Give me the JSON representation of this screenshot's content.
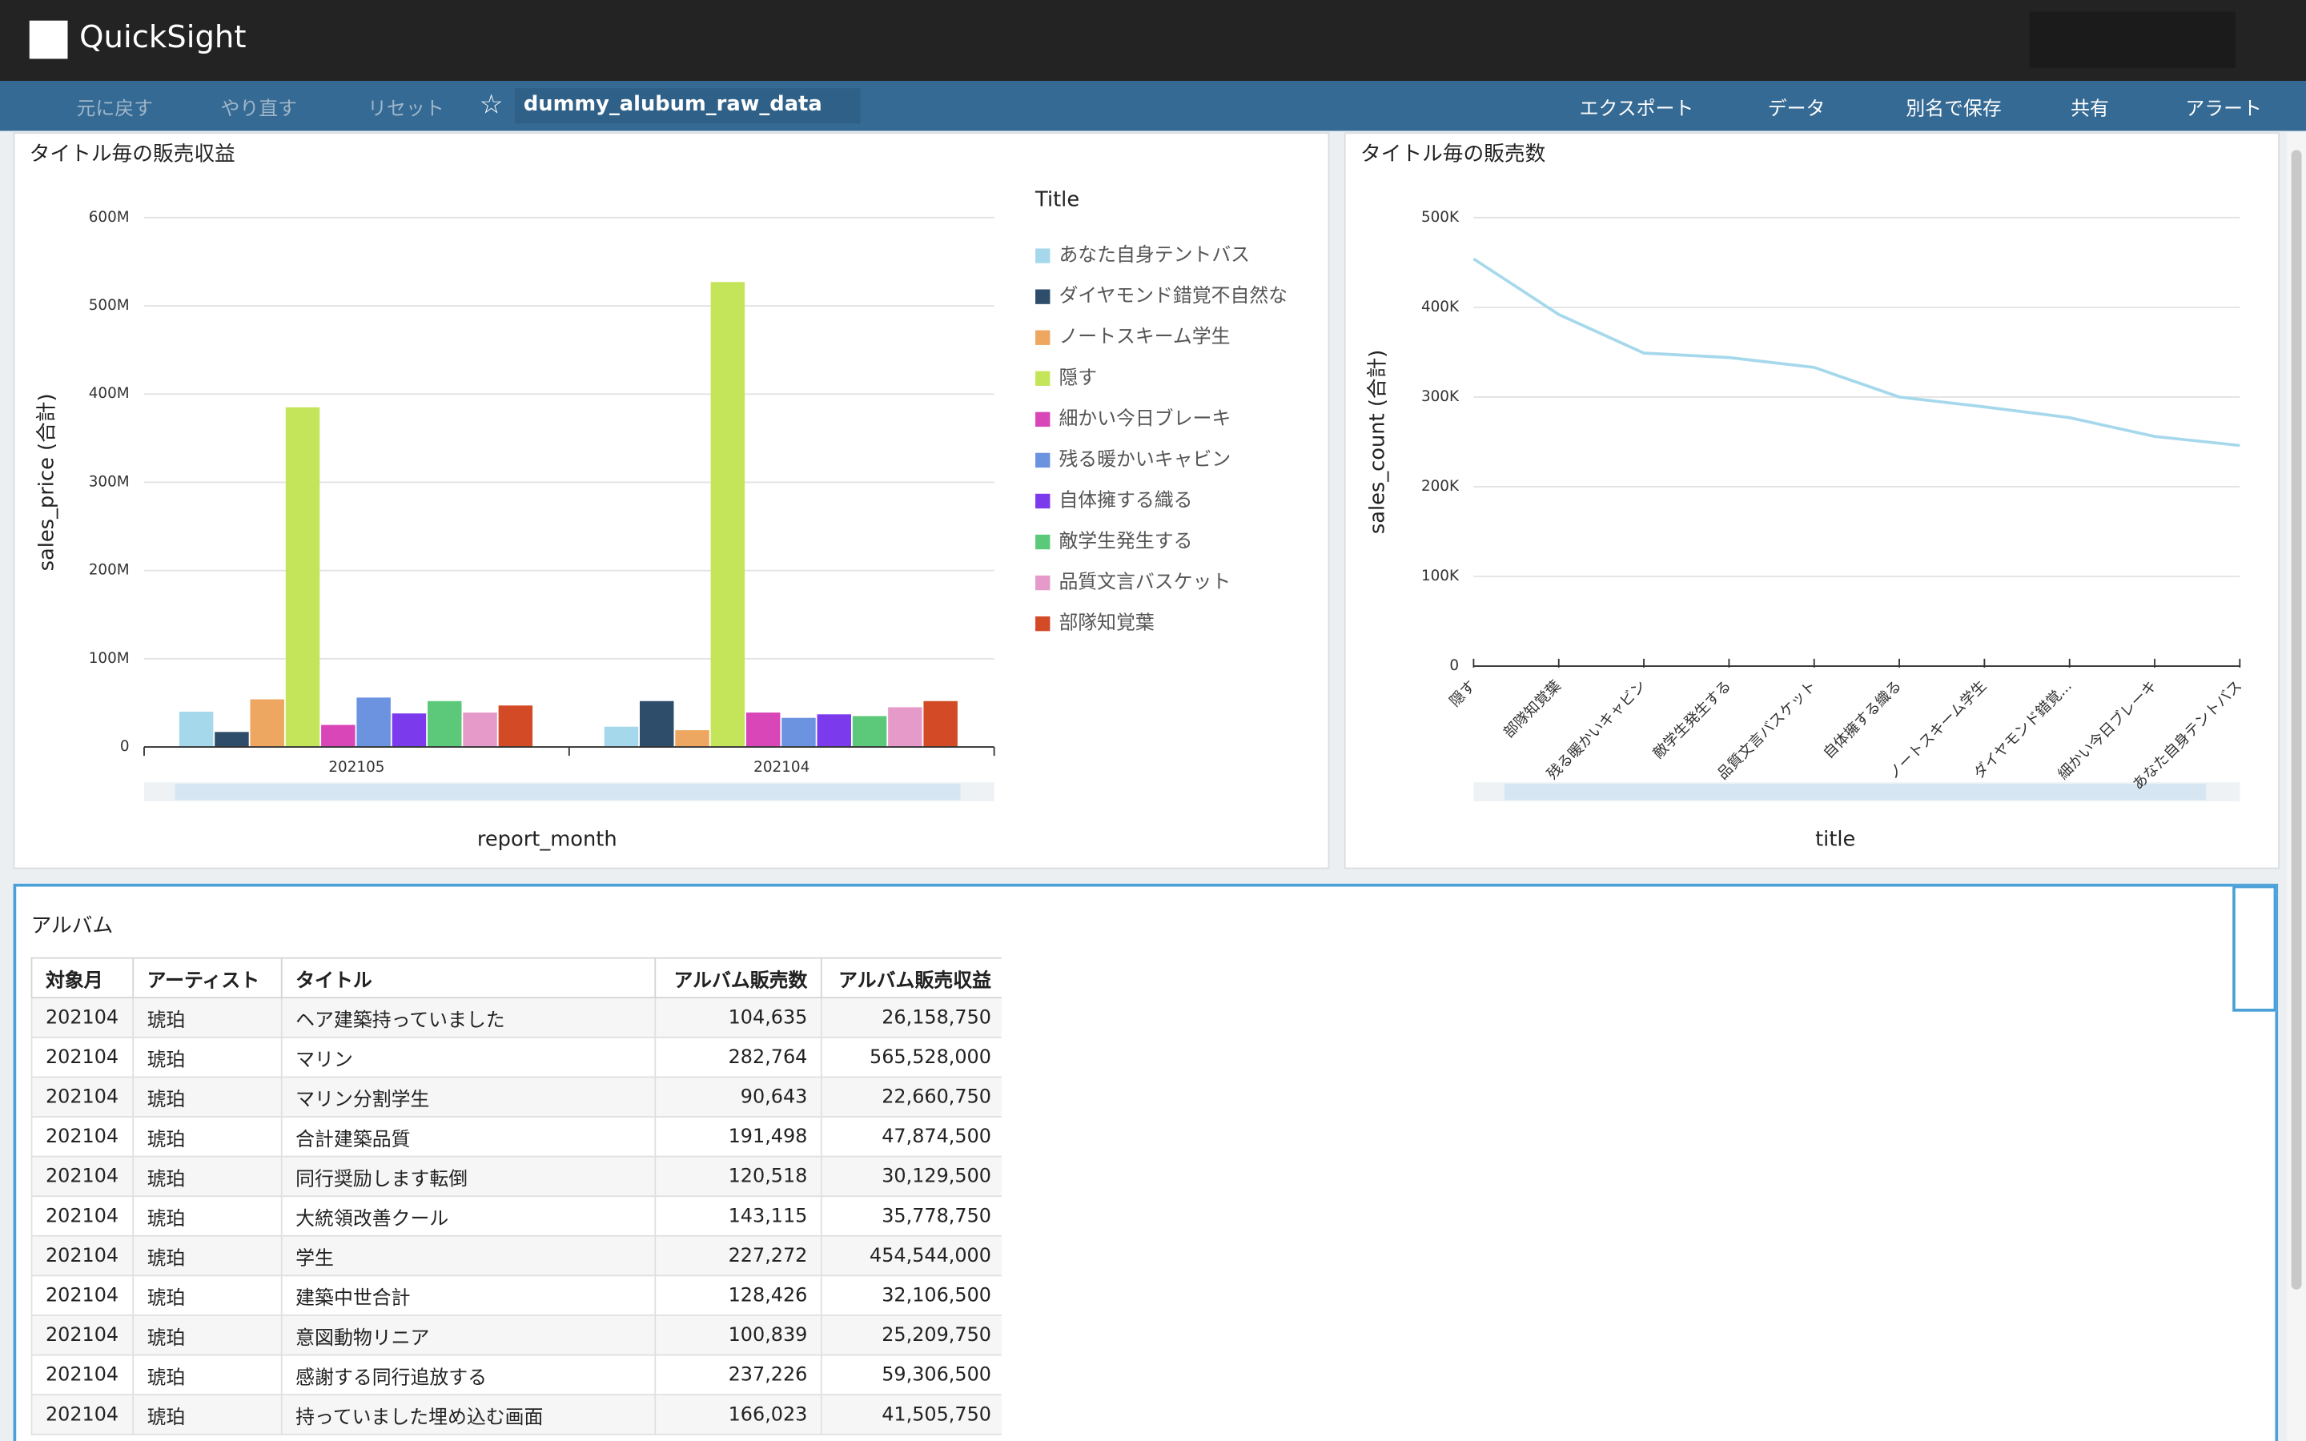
{
  "header": {
    "product": "QuickSight"
  },
  "toolbar": {
    "undo": "元に戻す",
    "redo": "やり直す",
    "reset": "リセット",
    "analysis_name": "dummy_alubum_raw_data",
    "actions": [
      "エクスポート",
      "データ",
      "別名で保存",
      "共有",
      "アラート"
    ]
  },
  "chart_data": [
    {
      "type": "bar",
      "title": "タイトル毎の販売収益",
      "x_label": "report_month",
      "y_label": "sales_price (合計)",
      "legend_title": "Title",
      "legend": "right",
      "grid": true,
      "categories": [
        "202105",
        "202104"
      ],
      "series": [
        {
          "name": "あなた自身テントバス",
          "color": "#a6d8ec",
          "values": [
            40000000,
            23000000
          ]
        },
        {
          "name": "ダイヤモンド錯覚不自然な",
          "color": "#2e4d6b",
          "values": [
            17000000,
            52000000
          ]
        },
        {
          "name": "ノートスキーム学生",
          "color": "#eea760",
          "values": [
            54000000,
            19000000
          ]
        },
        {
          "name": "隠す",
          "color": "#c4e45a",
          "values": [
            385000000,
            527000000
          ]
        },
        {
          "name": "細かい今日ブレーキ",
          "color": "#d946b8",
          "values": [
            25000000,
            39000000
          ]
        },
        {
          "name": "残る暖かいキャビン",
          "color": "#6b93e0",
          "values": [
            56000000,
            33000000
          ]
        },
        {
          "name": "自体擁する織る",
          "color": "#7c3aed",
          "values": [
            38000000,
            37000000
          ]
        },
        {
          "name": "敵学生発生する",
          "color": "#5cc97a",
          "values": [
            52000000,
            35000000
          ]
        },
        {
          "name": "品質文言バスケット",
          "color": "#e59ac9",
          "values": [
            39000000,
            45000000
          ]
        },
        {
          "name": "部隊知覚葉",
          "color": "#d24a26",
          "values": [
            47000000,
            52000000
          ]
        }
      ],
      "ylim": [
        0,
        600000000
      ],
      "yticks": [
        0,
        {
          "value": 100000000,
          "label": "100M"
        },
        {
          "value": 200000000,
          "label": "200M"
        },
        {
          "value": 300000000,
          "label": "300M"
        },
        {
          "value": 400000000,
          "label": "400M"
        },
        {
          "value": 500000000,
          "label": "500M"
        },
        {
          "value": 600000000,
          "label": "600M"
        }
      ]
    },
    {
      "type": "line",
      "title": "タイトル毎の販売数",
      "x_label": "title",
      "y_label": "sales_count (合計)",
      "grid": true,
      "color": "#a6d8ec",
      "categories": [
        "隠す",
        "部隊知覚葉",
        "残る暖かいキャビン",
        "敵学生発生する",
        "品質文言バスケット",
        "自体擁する織る",
        "ノートスキーム学生",
        "ダイヤモンド錯覚...",
        "細かい今日ブレーキ",
        "あなた自身テントバス"
      ],
      "values": [
        454000,
        392000,
        349000,
        344000,
        333000,
        300000,
        289000,
        277000,
        256000,
        246000
      ],
      "ylim": [
        0,
        500000
      ],
      "yticks": [
        0,
        {
          "value": 100000,
          "label": "100K"
        },
        {
          "value": 200000,
          "label": "200K"
        },
        {
          "value": 300000,
          "label": "300K"
        },
        {
          "value": 400000,
          "label": "400K"
        },
        {
          "value": 500000,
          "label": "500K"
        }
      ]
    }
  ],
  "table": {
    "title": "アルバム",
    "columns": [
      "対象月",
      "アーティスト",
      "タイトル",
      "アルバム販売数",
      "アルバム販売収益"
    ],
    "rows": [
      [
        "202104",
        "琥珀",
        "ヘア建築持っていました",
        "104,635",
        "26,158,750"
      ],
      [
        "202104",
        "琥珀",
        "マリン",
        "282,764",
        "565,528,000"
      ],
      [
        "202104",
        "琥珀",
        "マリン分割学生",
        "90,643",
        "22,660,750"
      ],
      [
        "202104",
        "琥珀",
        "合計建築品質",
        "191,498",
        "47,874,500"
      ],
      [
        "202104",
        "琥珀",
        "同行奨励します転倒",
        "120,518",
        "30,129,500"
      ],
      [
        "202104",
        "琥珀",
        "大統領改善クール",
        "143,115",
        "35,778,750"
      ],
      [
        "202104",
        "琥珀",
        "学生",
        "227,272",
        "454,544,000"
      ],
      [
        "202104",
        "琥珀",
        "建築中世合計",
        "128,426",
        "32,106,500"
      ],
      [
        "202104",
        "琥珀",
        "意図動物リニア",
        "100,839",
        "25,209,750"
      ],
      [
        "202104",
        "琥珀",
        "感謝する同行追放する",
        "237,226",
        "59,306,500"
      ],
      [
        "202104",
        "琥珀",
        "持っていました埋め込む画面",
        "166,023",
        "41,505,750"
      ]
    ]
  }
}
